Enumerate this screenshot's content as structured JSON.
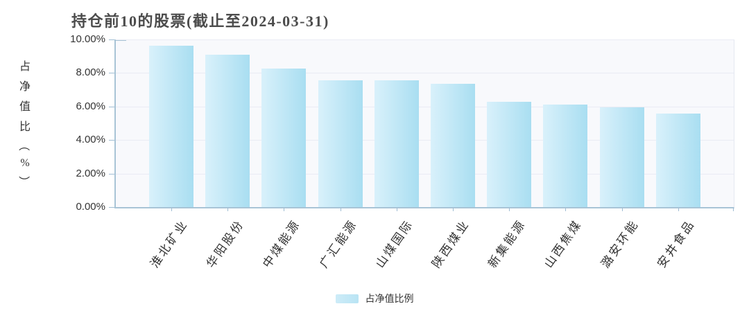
{
  "title": "持仓前10的股票(截止至2024-03-31)",
  "legend": {
    "label": "占净值比例"
  },
  "colors": {
    "bar_gradient_start": "#d9f1fb",
    "bar_gradient_end": "#a9def1",
    "axis_line": "#a8c4d6",
    "gridline": "#e9ebf4",
    "plot_background": "#f8f9fc",
    "title_text": "#4c4c4c",
    "tick_text": "#333333"
  },
  "chart_data": {
    "type": "bar",
    "title": "持仓前10的股票(截止至2024-03-31)",
    "categories": [
      "淮北矿业",
      "华阳股份",
      "中煤能源",
      "广汇能源",
      "山煤国际",
      "陕西煤业",
      "新集能源",
      "山西焦煤",
      "潞安环能",
      "安井食品"
    ],
    "values": [
      9.61,
      9.1,
      8.28,
      7.57,
      7.55,
      7.37,
      6.3,
      6.12,
      5.97,
      5.58
    ],
    "xlabel": "",
    "ylabel": "占净值比（%）",
    "ylim": [
      0,
      10
    ],
    "y_tick_labels": [
      "0.00%",
      "2.00%",
      "4.00%",
      "6.00%",
      "8.00%",
      "10.00%"
    ],
    "grid": true,
    "legend": [
      "占净值比例"
    ],
    "legend_position": "bottom"
  }
}
